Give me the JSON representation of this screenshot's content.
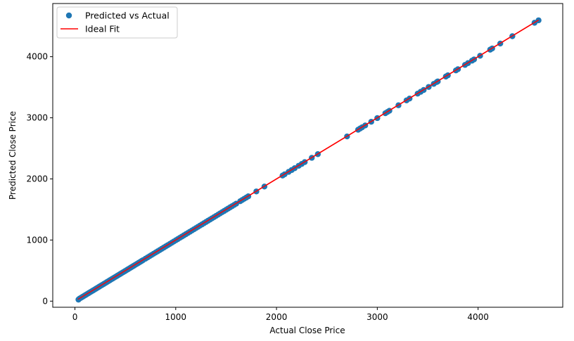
{
  "chart_data": {
    "type": "scatter",
    "title": "",
    "xlabel": "Actual Close Price",
    "ylabel": "Predicted Close Price",
    "xlim": [
      -220,
      4840
    ],
    "ylim": [
      -100,
      4870
    ],
    "xticks": [
      0,
      1000,
      2000,
      3000,
      4000
    ],
    "yticks": [
      0,
      1000,
      2000,
      3000,
      4000
    ],
    "grid": false,
    "legend_position": "upper-left",
    "series": [
      {
        "name": "Predicted vs Actual",
        "kind": "scatter",
        "color": "#1f77b4",
        "points": [
          [
            35,
            25
          ],
          [
            45,
            40
          ],
          [
            60,
            55
          ],
          [
            75,
            70
          ],
          [
            90,
            85
          ],
          [
            105,
            100
          ],
          [
            120,
            115
          ],
          [
            135,
            130
          ],
          [
            150,
            145
          ],
          [
            165,
            160
          ],
          [
            180,
            175
          ],
          [
            195,
            190
          ],
          [
            210,
            205
          ],
          [
            225,
            220
          ],
          [
            240,
            235
          ],
          [
            255,
            250
          ],
          [
            270,
            265
          ],
          [
            285,
            280
          ],
          [
            300,
            295
          ],
          [
            315,
            310
          ],
          [
            330,
            325
          ],
          [
            345,
            340
          ],
          [
            360,
            355
          ],
          [
            375,
            370
          ],
          [
            390,
            385
          ],
          [
            405,
            400
          ],
          [
            420,
            415
          ],
          [
            435,
            430
          ],
          [
            450,
            445
          ],
          [
            465,
            460
          ],
          [
            480,
            475
          ],
          [
            495,
            490
          ],
          [
            510,
            505
          ],
          [
            525,
            520
          ],
          [
            540,
            535
          ],
          [
            555,
            550
          ],
          [
            570,
            565
          ],
          [
            585,
            580
          ],
          [
            600,
            595
          ],
          [
            615,
            610
          ],
          [
            630,
            625
          ],
          [
            645,
            640
          ],
          [
            660,
            655
          ],
          [
            675,
            670
          ],
          [
            700,
            695
          ],
          [
            720,
            715
          ],
          [
            740,
            735
          ],
          [
            760,
            755
          ],
          [
            780,
            775
          ],
          [
            800,
            795
          ],
          [
            820,
            815
          ],
          [
            840,
            835
          ],
          [
            860,
            855
          ],
          [
            880,
            875
          ],
          [
            900,
            895
          ],
          [
            920,
            915
          ],
          [
            940,
            935
          ],
          [
            960,
            955
          ],
          [
            980,
            975
          ],
          [
            1000,
            995
          ],
          [
            1020,
            1015
          ],
          [
            1040,
            1035
          ],
          [
            1060,
            1055
          ],
          [
            1080,
            1075
          ],
          [
            1100,
            1095
          ],
          [
            1120,
            1115
          ],
          [
            1140,
            1135
          ],
          [
            1160,
            1155
          ],
          [
            1180,
            1175
          ],
          [
            1200,
            1195
          ],
          [
            1220,
            1215
          ],
          [
            1240,
            1235
          ],
          [
            1260,
            1255
          ],
          [
            1280,
            1275
          ],
          [
            1300,
            1295
          ],
          [
            1320,
            1315
          ],
          [
            1340,
            1335
          ],
          [
            1360,
            1355
          ],
          [
            1380,
            1375
          ],
          [
            1400,
            1395
          ],
          [
            1420,
            1415
          ],
          [
            1440,
            1435
          ],
          [
            1460,
            1455
          ],
          [
            1480,
            1475
          ],
          [
            1500,
            1495
          ],
          [
            1520,
            1515
          ],
          [
            1540,
            1535
          ],
          [
            1560,
            1555
          ],
          [
            1580,
            1575
          ],
          [
            1600,
            1595
          ],
          [
            1640,
            1635
          ],
          [
            1660,
            1655
          ],
          [
            1680,
            1675
          ],
          [
            1700,
            1695
          ],
          [
            1720,
            1715
          ],
          [
            1800,
            1795
          ],
          [
            1880,
            1875
          ],
          [
            2060,
            2055
          ],
          [
            2080,
            2075
          ],
          [
            2120,
            2115
          ],
          [
            2150,
            2145
          ],
          [
            2180,
            2175
          ],
          [
            2220,
            2215
          ],
          [
            2250,
            2245
          ],
          [
            2280,
            2275
          ],
          [
            2350,
            2345
          ],
          [
            2410,
            2405
          ],
          [
            2700,
            2695
          ],
          [
            2810,
            2805
          ],
          [
            2830,
            2825
          ],
          [
            2850,
            2845
          ],
          [
            2880,
            2875
          ],
          [
            2940,
            2935
          ],
          [
            3000,
            2995
          ],
          [
            3080,
            3075
          ],
          [
            3100,
            3095
          ],
          [
            3120,
            3115
          ],
          [
            3210,
            3205
          ],
          [
            3290,
            3285
          ],
          [
            3320,
            3315
          ],
          [
            3400,
            3395
          ],
          [
            3430,
            3425
          ],
          [
            3460,
            3455
          ],
          [
            3510,
            3505
          ],
          [
            3560,
            3555
          ],
          [
            3590,
            3585
          ],
          [
            3600,
            3595
          ],
          [
            3680,
            3675
          ],
          [
            3700,
            3695
          ],
          [
            3780,
            3775
          ],
          [
            3800,
            3795
          ],
          [
            3870,
            3865
          ],
          [
            3900,
            3895
          ],
          [
            3940,
            3935
          ],
          [
            3960,
            3955
          ],
          [
            4020,
            4015
          ],
          [
            4120,
            4115
          ],
          [
            4140,
            4135
          ],
          [
            4220,
            4215
          ],
          [
            4340,
            4335
          ],
          [
            4560,
            4555
          ],
          [
            4600,
            4595
          ]
        ]
      },
      {
        "name": "Ideal Fit",
        "kind": "line",
        "color": "#ff0000",
        "x": [
          30,
          4600
        ],
        "y": [
          30,
          4600
        ]
      }
    ]
  }
}
